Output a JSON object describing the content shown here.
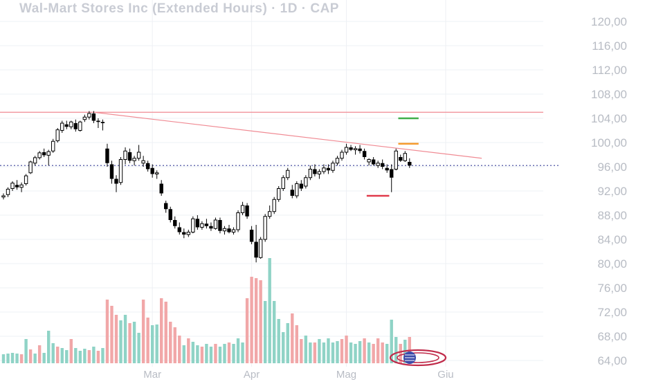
{
  "chart_data": {
    "type": "candlestick",
    "title": "Wal-Mart Stores Inc (Extended Hours) · 1D · CAP",
    "xlabel": "",
    "ylabel": "",
    "ylim": [
      64,
      122
    ],
    "y_ticks": [
      "120,00",
      "116,00",
      "112,00",
      "108,00",
      "104,00",
      "100,00",
      "96,00",
      "92,00",
      "88,00",
      "84,00",
      "80,00",
      "76,00",
      "72,00",
      "68,00",
      "64,00"
    ],
    "x_ticks": [
      {
        "label": "Mar",
        "index": 33
      },
      {
        "label": "Apr",
        "index": 55
      },
      {
        "label": "Mag",
        "index": 76
      },
      {
        "label": "Giu",
        "index": 98
      }
    ],
    "last_price": 96.2,
    "grid": true,
    "candles": [
      [
        91.0,
        91.6,
        90.6,
        91.2
      ],
      [
        91.4,
        92.6,
        91.0,
        92.3
      ],
      [
        92.4,
        93.6,
        92.0,
        93.3
      ],
      [
        93.0,
        93.8,
        92.2,
        92.6
      ],
      [
        92.6,
        93.4,
        91.8,
        93.0
      ],
      [
        93.2,
        94.8,
        92.9,
        94.5
      ],
      [
        95.0,
        97.0,
        94.8,
        96.8
      ],
      [
        96.6,
        97.8,
        96.2,
        97.5
      ],
      [
        97.5,
        98.6,
        97.2,
        98.3
      ],
      [
        98.4,
        99.0,
        97.6,
        97.9
      ],
      [
        97.9,
        98.8,
        96.2,
        98.5
      ],
      [
        98.6,
        100.6,
        98.3,
        100.2
      ],
      [
        100.3,
        102.4,
        100.0,
        102.1
      ],
      [
        102.0,
        103.6,
        101.6,
        103.2
      ],
      [
        103.0,
        103.6,
        102.2,
        102.6
      ],
      [
        102.6,
        103.6,
        102.2,
        103.4
      ],
      [
        103.2,
        103.8,
        101.8,
        102.2
      ],
      [
        102.0,
        103.6,
        101.8,
        103.4
      ],
      [
        103.8,
        104.6,
        103.4,
        104.2
      ],
      [
        104.2,
        105.2,
        103.8,
        104.8
      ],
      [
        104.8,
        105.2,
        103.2,
        103.6
      ],
      [
        103.6,
        104.0,
        102.4,
        103.4
      ],
      [
        103.4,
        103.8,
        102.0,
        103.2
      ],
      [
        99.0,
        99.8,
        96.0,
        96.6
      ],
      [
        96.4,
        97.0,
        93.2,
        94.0
      ],
      [
        94.0,
        94.6,
        91.8,
        93.2
      ],
      [
        93.4,
        97.6,
        93.0,
        97.2
      ],
      [
        97.2,
        99.2,
        96.4,
        98.6
      ],
      [
        98.4,
        99.0,
        96.6,
        97.0
      ],
      [
        97.0,
        97.8,
        96.2,
        97.4
      ],
      [
        97.4,
        99.6,
        97.0,
        98.4
      ],
      [
        96.6,
        97.8,
        96.0,
        97.0
      ],
      [
        96.6,
        97.0,
        95.2,
        95.6
      ],
      [
        95.8,
        96.4,
        94.2,
        94.8
      ],
      [
        94.8,
        95.4,
        94.0,
        95.0
      ],
      [
        93.2,
        93.8,
        91.2,
        91.6
      ],
      [
        90.0,
        90.4,
        88.4,
        89.0
      ],
      [
        89.0,
        89.4,
        86.8,
        87.2
      ],
      [
        87.2,
        87.8,
        85.8,
        86.2
      ],
      [
        86.0,
        86.8,
        84.8,
        85.2
      ],
      [
        85.2,
        85.8,
        84.2,
        84.8
      ],
      [
        84.8,
        85.6,
        84.4,
        85.2
      ],
      [
        85.2,
        87.8,
        85.0,
        87.4
      ],
      [
        87.4,
        88.0,
        85.6,
        86.0
      ],
      [
        86.0,
        87.0,
        85.6,
        86.6
      ],
      [
        86.6,
        87.4,
        85.8,
        86.2
      ],
      [
        86.2,
        86.8,
        85.4,
        85.8
      ],
      [
        85.8,
        87.6,
        85.6,
        87.2
      ],
      [
        87.2,
        87.6,
        85.0,
        85.4
      ],
      [
        85.4,
        86.2,
        84.8,
        85.8
      ],
      [
        85.8,
        86.4,
        85.0,
        85.2
      ],
      [
        85.2,
        86.0,
        84.8,
        85.6
      ],
      [
        85.6,
        88.8,
        85.2,
        88.4
      ],
      [
        88.4,
        90.2,
        88.0,
        89.6
      ],
      [
        89.6,
        90.0,
        87.4,
        87.8
      ],
      [
        85.6,
        86.2,
        83.2,
        83.6
      ],
      [
        83.6,
        86.4,
        80.2,
        81.0
      ],
      [
        81.0,
        84.4,
        80.8,
        84.0
      ],
      [
        84.0,
        88.2,
        83.6,
        87.8
      ],
      [
        87.8,
        89.6,
        87.4,
        88.6
      ],
      [
        88.6,
        91.0,
        88.2,
        90.6
      ],
      [
        90.6,
        92.8,
        90.2,
        92.4
      ],
      [
        92.4,
        94.6,
        92.0,
        94.2
      ],
      [
        94.2,
        95.8,
        93.8,
        95.4
      ],
      [
        92.2,
        93.0,
        90.8,
        91.2
      ],
      [
        91.2,
        93.6,
        90.8,
        93.2
      ],
      [
        93.2,
        93.8,
        92.0,
        92.4
      ],
      [
        92.8,
        94.6,
        92.4,
        94.2
      ],
      [
        94.2,
        96.2,
        93.8,
        95.6
      ],
      [
        95.6,
        96.4,
        94.4,
        94.8
      ],
      [
        94.8,
        95.6,
        94.0,
        95.2
      ],
      [
        95.2,
        96.4,
        94.8,
        95.8
      ],
      [
        95.8,
        96.4,
        94.8,
        95.4
      ],
      [
        95.4,
        97.0,
        95.0,
        96.6
      ],
      [
        96.6,
        97.8,
        96.2,
        97.4
      ],
      [
        97.4,
        98.8,
        97.0,
        98.4
      ],
      [
        98.4,
        99.8,
        98.0,
        99.2
      ],
      [
        99.2,
        99.6,
        98.6,
        98.8
      ],
      [
        98.8,
        99.4,
        98.0,
        99.0
      ],
      [
        99.0,
        99.6,
        98.2,
        98.6
      ],
      [
        98.6,
        99.0,
        97.2,
        97.6
      ],
      [
        96.8,
        97.4,
        96.2,
        97.2
      ],
      [
        97.2,
        97.6,
        96.2,
        96.4
      ],
      [
        96.2,
        97.0,
        95.8,
        96.6
      ],
      [
        96.6,
        97.2,
        95.6,
        96.0
      ],
      [
        95.8,
        96.4,
        95.0,
        95.4
      ],
      [
        95.6,
        96.4,
        91.8,
        94.2
      ],
      [
        95.6,
        99.0,
        95.4,
        98.6
      ],
      [
        97.6,
        98.0,
        96.8,
        97.0
      ],
      [
        97.0,
        98.6,
        96.8,
        98.2
      ],
      [
        96.8,
        97.4,
        95.8,
        96.2
      ]
    ],
    "volume": [
      {
        "h": 13,
        "c": "g"
      },
      {
        "h": 14,
        "c": "g"
      },
      {
        "h": 15,
        "c": "g"
      },
      {
        "h": 14,
        "c": "g"
      },
      {
        "h": 13,
        "c": "r"
      },
      {
        "h": 35,
        "c": "g"
      },
      {
        "h": 20,
        "c": "r"
      },
      {
        "h": 14,
        "c": "g"
      },
      {
        "h": 26,
        "c": "r"
      },
      {
        "h": 15,
        "c": "g"
      },
      {
        "h": 47,
        "c": "g"
      },
      {
        "h": 29,
        "c": "g"
      },
      {
        "h": 24,
        "c": "r"
      },
      {
        "h": 22,
        "c": "g"
      },
      {
        "h": 19,
        "c": "g"
      },
      {
        "h": 35,
        "c": "r"
      },
      {
        "h": 22,
        "c": "g"
      },
      {
        "h": 18,
        "c": "g"
      },
      {
        "h": 21,
        "c": "g"
      },
      {
        "h": 19,
        "c": "r"
      },
      {
        "h": 24,
        "c": "g"
      },
      {
        "h": 18,
        "c": "r"
      },
      {
        "h": 22,
        "c": "g"
      },
      {
        "h": 92,
        "c": "r"
      },
      {
        "h": 83,
        "c": "r"
      },
      {
        "h": 70,
        "c": "r"
      },
      {
        "h": 62,
        "c": "g"
      },
      {
        "h": 70,
        "c": "g"
      },
      {
        "h": 58,
        "c": "r"
      },
      {
        "h": 60,
        "c": "g"
      },
      {
        "h": 44,
        "c": "g"
      },
      {
        "h": 92,
        "c": "r"
      },
      {
        "h": 66,
        "c": "r"
      },
      {
        "h": 55,
        "c": "g"
      },
      {
        "h": 56,
        "c": "g"
      },
      {
        "h": 94,
        "c": "r"
      },
      {
        "h": 89,
        "c": "r"
      },
      {
        "h": 60,
        "c": "r"
      },
      {
        "h": 52,
        "c": "r"
      },
      {
        "h": 40,
        "c": "r"
      },
      {
        "h": 26,
        "c": "g"
      },
      {
        "h": 36,
        "c": "r"
      },
      {
        "h": 31,
        "c": "g"
      },
      {
        "h": 26,
        "c": "g"
      },
      {
        "h": 24,
        "c": "r"
      },
      {
        "h": 28,
        "c": "g"
      },
      {
        "h": 24,
        "c": "g"
      },
      {
        "h": 28,
        "c": "r"
      },
      {
        "h": 24,
        "c": "g"
      },
      {
        "h": 28,
        "c": "g"
      },
      {
        "h": 30,
        "c": "r"
      },
      {
        "h": 28,
        "c": "g"
      },
      {
        "h": 36,
        "c": "g"
      },
      {
        "h": 30,
        "c": "g"
      },
      {
        "h": 94,
        "c": "r"
      },
      {
        "h": 125,
        "c": "r"
      },
      {
        "h": 123,
        "c": "r"
      },
      {
        "h": 120,
        "c": "r"
      },
      {
        "h": 90,
        "c": "g"
      },
      {
        "h": 152,
        "c": "g"
      },
      {
        "h": 90,
        "c": "g"
      },
      {
        "h": 64,
        "c": "g"
      },
      {
        "h": 45,
        "c": "g"
      },
      {
        "h": 58,
        "c": "g"
      },
      {
        "h": 72,
        "c": "r"
      },
      {
        "h": 55,
        "c": "r"
      },
      {
        "h": 35,
        "c": "r"
      },
      {
        "h": 40,
        "c": "g"
      },
      {
        "h": 30,
        "c": "g"
      },
      {
        "h": 30,
        "c": "r"
      },
      {
        "h": 35,
        "c": "g"
      },
      {
        "h": 30,
        "c": "g"
      },
      {
        "h": 36,
        "c": "g"
      },
      {
        "h": 30,
        "c": "g"
      },
      {
        "h": 32,
        "c": "g"
      },
      {
        "h": 35,
        "c": "r"
      },
      {
        "h": 40,
        "c": "r"
      },
      {
        "h": 30,
        "c": "g"
      },
      {
        "h": 28,
        "c": "g"
      },
      {
        "h": 32,
        "c": "g"
      },
      {
        "h": 36,
        "c": "r"
      },
      {
        "h": 30,
        "c": "g"
      },
      {
        "h": 28,
        "c": "r"
      },
      {
        "h": 36,
        "c": "r"
      },
      {
        "h": 30,
        "c": "r"
      },
      {
        "h": 28,
        "c": "g"
      },
      {
        "h": 63,
        "c": "g"
      },
      {
        "h": 38,
        "c": "g"
      },
      {
        "h": 28,
        "c": "r"
      },
      {
        "h": 34,
        "c": "g"
      },
      {
        "h": 38,
        "c": "r"
      }
    ],
    "annotations": [
      {
        "type": "hline",
        "y": 105.0,
        "color": "#f08a93"
      },
      {
        "type": "trendline",
        "from": [
          20,
          105.0
        ],
        "to": [
          106,
          97.4
        ],
        "color": "#f08a93"
      },
      {
        "type": "hline",
        "y": 96.2,
        "color": "#6a6fb2",
        "style": "dotted"
      },
      {
        "type": "segment",
        "from": [
          87.5,
          104.0
        ],
        "to": [
          92,
          104.0
        ],
        "color": "#3fae49"
      },
      {
        "type": "segment",
        "from": [
          87.5,
          99.8
        ],
        "to": [
          92,
          99.8
        ],
        "color": "#f59b2e"
      },
      {
        "type": "segment",
        "from": [
          80.5,
          91.2
        ],
        "to": [
          85.5,
          91.2
        ],
        "color": "#e03a4a"
      }
    ]
  },
  "colors": {
    "candle": "#000000",
    "volume_up": "#8fd3c6",
    "volume_down": "#f1a7a8",
    "grid": "#eef0f4",
    "axis_text": "#b8bcc4",
    "title": "#c9ccd4",
    "logo": "#c02b4a"
  }
}
